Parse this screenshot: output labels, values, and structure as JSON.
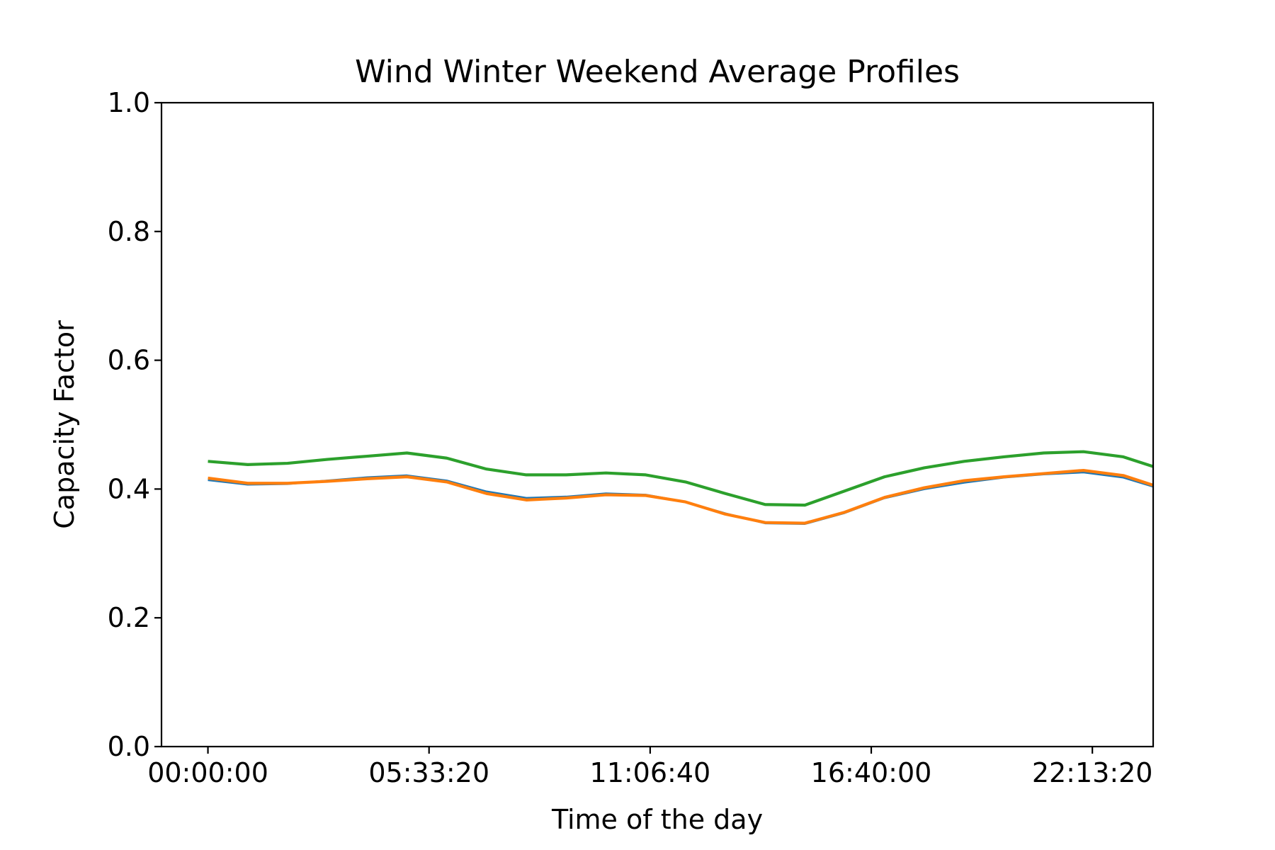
{
  "chart_data": {
    "type": "line",
    "title": "Wind Winter Weekend Average Profiles",
    "xlabel": "Time of the day",
    "ylabel": "Capacity Factor",
    "ylim": [
      0.0,
      1.0
    ],
    "xlim_seconds": [
      -4200,
      85500
    ],
    "x_unit": "seconds since 00:00:00",
    "x_ticks": [
      {
        "value": 0,
        "label": "00:00:00"
      },
      {
        "value": 20000,
        "label": "05:33:20"
      },
      {
        "value": 40000,
        "label": "11:06:40"
      },
      {
        "value": 60000,
        "label": "16:40:00"
      },
      {
        "value": 80000,
        "label": "22:13:20"
      }
    ],
    "y_ticks": [
      {
        "value": 0.0,
        "label": "0.0"
      },
      {
        "value": 0.2,
        "label": "0.2"
      },
      {
        "value": 0.4,
        "label": "0.4"
      },
      {
        "value": 0.6,
        "label": "0.6"
      },
      {
        "value": 0.8,
        "label": "0.8"
      },
      {
        "value": 1.0,
        "label": "1.0"
      }
    ],
    "grid": false,
    "legend": "none",
    "x": [
      0,
      3600,
      7200,
      10800,
      14400,
      18000,
      21600,
      25200,
      28800,
      32400,
      36000,
      39600,
      43200,
      46800,
      50400,
      54000,
      57600,
      61200,
      64800,
      68400,
      72000,
      75600,
      79200,
      82800,
      85500
    ],
    "series": [
      {
        "color": "#1f77b4",
        "values": [
          0.414,
          0.407,
          0.408,
          0.413,
          0.418,
          0.421,
          0.413,
          0.396,
          0.386,
          0.388,
          0.393,
          0.391,
          0.38,
          0.362,
          0.347,
          0.346,
          0.363,
          0.386,
          0.4,
          0.41,
          0.418,
          0.423,
          0.426,
          0.418,
          0.404
        ]
      },
      {
        "color": "#ff7f0e",
        "values": [
          0.417,
          0.409,
          0.409,
          0.412,
          0.416,
          0.419,
          0.411,
          0.393,
          0.383,
          0.386,
          0.391,
          0.39,
          0.38,
          0.361,
          0.348,
          0.347,
          0.364,
          0.387,
          0.402,
          0.413,
          0.419,
          0.424,
          0.429,
          0.421,
          0.406
        ]
      },
      {
        "color": "#2ca02c",
        "values": [
          0.443,
          0.438,
          0.44,
          0.446,
          0.451,
          0.456,
          0.448,
          0.431,
          0.422,
          0.422,
          0.425,
          0.422,
          0.411,
          0.393,
          0.376,
          0.375,
          0.397,
          0.419,
          0.433,
          0.443,
          0.45,
          0.456,
          0.458,
          0.45,
          0.435
        ]
      }
    ]
  }
}
